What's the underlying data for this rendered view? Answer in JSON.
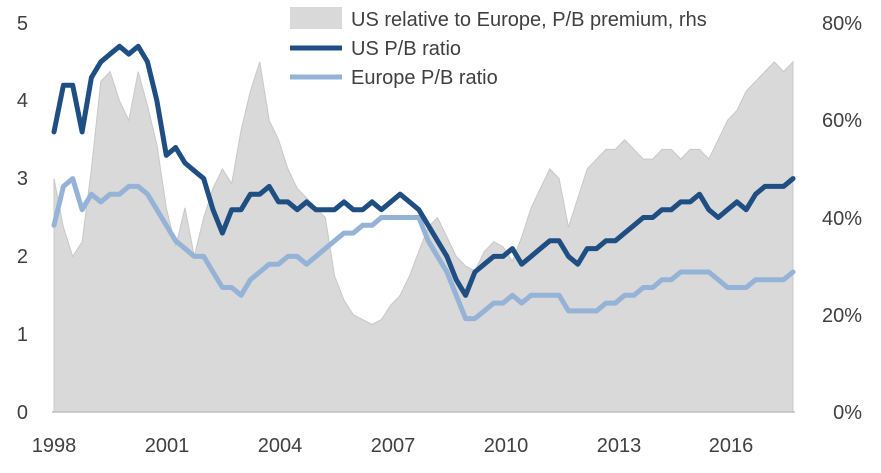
{
  "chart_data": {
    "type": "line",
    "title": "",
    "xlabel": "",
    "ylabel": "",
    "xlim": [
      1998,
      2017.75
    ],
    "ylim": [
      0,
      5
    ],
    "y2lim": [
      0,
      80
    ],
    "x_ticks": [
      "1998",
      "2001",
      "2004",
      "2007",
      "2010",
      "2013",
      "2016"
    ],
    "y_ticks": [
      "0",
      "1",
      "2",
      "3",
      "4",
      "5"
    ],
    "y2_ticks": [
      "0%",
      "20%",
      "40%",
      "60%",
      "80%"
    ],
    "grid": false,
    "legend_position": "top",
    "colors": {
      "premium_area": "#d9d9d9",
      "us_line": "#1f4e82",
      "europe_line": "#95b3d7"
    },
    "series": [
      {
        "name": "US relative to Europe, P/B premium, rhs",
        "type": "area",
        "axis": "right",
        "x": [
          1998.0,
          1998.25,
          1998.5,
          1998.75,
          1999.0,
          1999.25,
          1999.5,
          1999.75,
          2000.0,
          2000.25,
          2000.5,
          2000.75,
          2001.0,
          2001.25,
          2001.5,
          2001.75,
          2002.0,
          2002.25,
          2002.5,
          2002.75,
          2003.0,
          2003.25,
          2003.5,
          2003.75,
          2004.0,
          2004.25,
          2004.5,
          2004.75,
          2005.0,
          2005.25,
          2005.5,
          2005.75,
          2006.0,
          2006.25,
          2006.5,
          2006.75,
          2007.0,
          2007.25,
          2007.5,
          2007.75,
          2008.0,
          2008.25,
          2008.5,
          2008.75,
          2009.0,
          2009.25,
          2009.5,
          2009.75,
          2010.0,
          2010.25,
          2010.5,
          2010.75,
          2011.0,
          2011.25,
          2011.5,
          2011.75,
          2012.0,
          2012.25,
          2012.5,
          2012.75,
          2013.0,
          2013.25,
          2013.5,
          2013.75,
          2014.0,
          2014.25,
          2014.5,
          2014.75,
          2015.0,
          2015.25,
          2015.5,
          2015.75,
          2016.0,
          2016.25,
          2016.5,
          2016.75,
          2017.0,
          2017.25,
          2017.5,
          2017.75
        ],
        "values": [
          48,
          38,
          32,
          35,
          50,
          68,
          70,
          64,
          60,
          70,
          63,
          55,
          42,
          34,
          42,
          32,
          40,
          46,
          50,
          47,
          58,
          66,
          72,
          60,
          56,
          50,
          46,
          44,
          42,
          40,
          28,
          23,
          20,
          19,
          18,
          19,
          22,
          24,
          28,
          33,
          38,
          40,
          36,
          32,
          30,
          29,
          33,
          35,
          34,
          31,
          36,
          42,
          46,
          50,
          48,
          38,
          44,
          50,
          52,
          54,
          54,
          56,
          54,
          52,
          52,
          54,
          54,
          52,
          54,
          54,
          52,
          56,
          60,
          62,
          66,
          68,
          70,
          72,
          70,
          72
        ]
      },
      {
        "name": "US P/B ratio",
        "type": "line",
        "axis": "left",
        "x": [
          1998.0,
          1998.25,
          1998.5,
          1998.75,
          1999.0,
          1999.25,
          1999.5,
          1999.75,
          2000.0,
          2000.25,
          2000.5,
          2000.75,
          2001.0,
          2001.25,
          2001.5,
          2001.75,
          2002.0,
          2002.25,
          2002.5,
          2002.75,
          2003.0,
          2003.25,
          2003.5,
          2003.75,
          2004.0,
          2004.25,
          2004.5,
          2004.75,
          2005.0,
          2005.25,
          2005.5,
          2005.75,
          2006.0,
          2006.25,
          2006.5,
          2006.75,
          2007.0,
          2007.25,
          2007.5,
          2007.75,
          2008.0,
          2008.25,
          2008.5,
          2008.75,
          2009.0,
          2009.25,
          2009.5,
          2009.75,
          2010.0,
          2010.25,
          2010.5,
          2010.75,
          2011.0,
          2011.25,
          2011.5,
          2011.75,
          2012.0,
          2012.25,
          2012.5,
          2012.75,
          2013.0,
          2013.25,
          2013.5,
          2013.75,
          2014.0,
          2014.25,
          2014.5,
          2014.75,
          2015.0,
          2015.25,
          2015.5,
          2015.75,
          2016.0,
          2016.25,
          2016.5,
          2016.75,
          2017.0,
          2017.25,
          2017.5,
          2017.75
        ],
        "values": [
          3.6,
          4.2,
          4.2,
          3.6,
          4.3,
          4.5,
          4.6,
          4.7,
          4.6,
          4.7,
          4.5,
          4.0,
          3.3,
          3.4,
          3.2,
          3.1,
          3.0,
          2.6,
          2.3,
          2.6,
          2.6,
          2.8,
          2.8,
          2.9,
          2.7,
          2.7,
          2.6,
          2.7,
          2.6,
          2.6,
          2.6,
          2.7,
          2.6,
          2.6,
          2.7,
          2.6,
          2.7,
          2.8,
          2.7,
          2.6,
          2.4,
          2.2,
          2.0,
          1.7,
          1.5,
          1.8,
          1.9,
          2.0,
          2.0,
          2.1,
          1.9,
          2.0,
          2.1,
          2.2,
          2.2,
          2.0,
          1.9,
          2.1,
          2.1,
          2.2,
          2.2,
          2.3,
          2.4,
          2.5,
          2.5,
          2.6,
          2.6,
          2.7,
          2.7,
          2.8,
          2.6,
          2.5,
          2.6,
          2.7,
          2.6,
          2.8,
          2.9,
          2.9,
          2.9,
          3.0
        ]
      },
      {
        "name": "Europe P/B ratio",
        "type": "line",
        "axis": "left",
        "x": [
          1998.0,
          1998.25,
          1998.5,
          1998.75,
          1999.0,
          1999.25,
          1999.5,
          1999.75,
          2000.0,
          2000.25,
          2000.5,
          2000.75,
          2001.0,
          2001.25,
          2001.5,
          2001.75,
          2002.0,
          2002.25,
          2002.5,
          2002.75,
          2003.0,
          2003.25,
          2003.5,
          2003.75,
          2004.0,
          2004.25,
          2004.5,
          2004.75,
          2005.0,
          2005.25,
          2005.5,
          2005.75,
          2006.0,
          2006.25,
          2006.5,
          2006.75,
          2007.0,
          2007.25,
          2007.5,
          2007.75,
          2008.0,
          2008.25,
          2008.5,
          2008.75,
          2009.0,
          2009.25,
          2009.5,
          2009.75,
          2010.0,
          2010.25,
          2010.5,
          2010.75,
          2011.0,
          2011.25,
          2011.5,
          2011.75,
          2012.0,
          2012.25,
          2012.5,
          2012.75,
          2013.0,
          2013.25,
          2013.5,
          2013.75,
          2014.0,
          2014.25,
          2014.5,
          2014.75,
          2015.0,
          2015.25,
          2015.5,
          2015.75,
          2016.0,
          2016.25,
          2016.5,
          2016.75,
          2017.0,
          2017.25,
          2017.5,
          2017.75
        ],
        "values": [
          2.4,
          2.9,
          3.0,
          2.6,
          2.8,
          2.7,
          2.8,
          2.8,
          2.9,
          2.9,
          2.8,
          2.6,
          2.4,
          2.2,
          2.1,
          2.0,
          2.0,
          1.8,
          1.6,
          1.6,
          1.5,
          1.7,
          1.8,
          1.9,
          1.9,
          2.0,
          2.0,
          1.9,
          2.0,
          2.1,
          2.2,
          2.3,
          2.3,
          2.4,
          2.4,
          2.5,
          2.5,
          2.5,
          2.5,
          2.5,
          2.2,
          2.0,
          1.8,
          1.5,
          1.2,
          1.2,
          1.3,
          1.4,
          1.4,
          1.5,
          1.4,
          1.5,
          1.5,
          1.5,
          1.5,
          1.3,
          1.3,
          1.3,
          1.3,
          1.4,
          1.4,
          1.5,
          1.5,
          1.6,
          1.6,
          1.7,
          1.7,
          1.8,
          1.8,
          1.8,
          1.8,
          1.7,
          1.6,
          1.6,
          1.6,
          1.7,
          1.7,
          1.7,
          1.7,
          1.8
        ]
      }
    ]
  }
}
